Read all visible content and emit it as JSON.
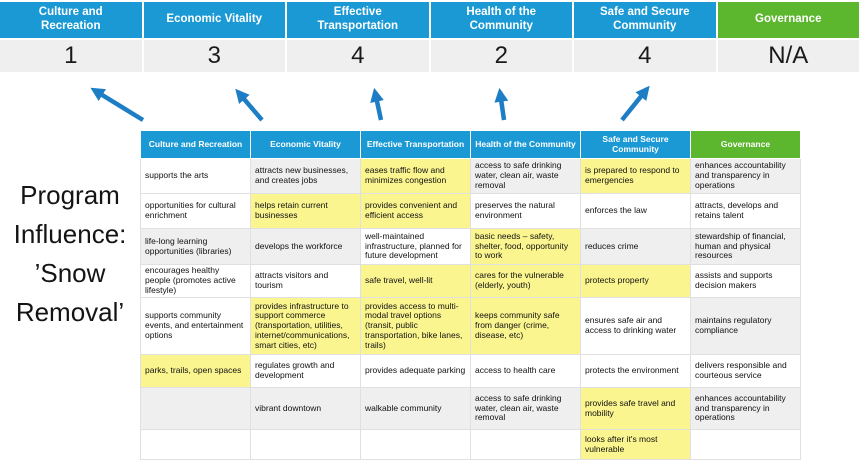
{
  "colors": {
    "header_blue": "#1b99d5",
    "governance_green": "#5cb62e",
    "highlight_yellow": "#fbf58f",
    "gray_cell": "#efefef",
    "white_cell": "#ffffff",
    "number_row_bg": "#efefef",
    "arrow_blue": "#1e7ec5"
  },
  "program_label": {
    "lines": [
      "Program",
      "Influence:",
      "’Snow",
      "Removal’"
    ]
  },
  "banner": {
    "columns": [
      {
        "label": "Culture and Recreation",
        "score": "1",
        "accent": "blue"
      },
      {
        "label": "Economic Vitality",
        "score": "3",
        "accent": "blue"
      },
      {
        "label": "Effective Transportation",
        "score": "4",
        "accent": "blue"
      },
      {
        "label": "Health of the Community",
        "score": "2",
        "accent": "blue"
      },
      {
        "label": "Safe and Secure Community",
        "score": "4",
        "accent": "blue"
      },
      {
        "label": "Governance",
        "score": "N/A",
        "accent": "green"
      }
    ]
  },
  "arrows": {
    "direction": "up",
    "count": 5
  },
  "matrix": {
    "headers": [
      {
        "label": "Culture and Recreation",
        "accent": "blue"
      },
      {
        "label": "Economic Vitality",
        "accent": "blue"
      },
      {
        "label": "Effective Transportation",
        "accent": "blue"
      },
      {
        "label": "Health of the Community",
        "accent": "blue"
      },
      {
        "label": "Safe and Secure Community",
        "accent": "blue"
      },
      {
        "label": "Governance",
        "accent": "green"
      }
    ],
    "rows": [
      [
        {
          "t": "supports the arts",
          "bg": "w"
        },
        {
          "t": "attracts new businesses, and creates jobs",
          "bg": "g"
        },
        {
          "t": "eases traffic flow and minimizes congestion",
          "bg": "y"
        },
        {
          "t": "access to safe drinking water, clean air, waste removal",
          "bg": "g"
        },
        {
          "t": "is prepared to respond to emergencies",
          "bg": "y"
        },
        {
          "t": "enhances accountability and transparency in operations",
          "bg": "g"
        }
      ],
      [
        {
          "t": "opportunities for cultural enrichment",
          "bg": "w"
        },
        {
          "t": "helps retain current businesses",
          "bg": "y"
        },
        {
          "t": "provides convenient and efficient access",
          "bg": "y"
        },
        {
          "t": "preserves the natural environment",
          "bg": "w"
        },
        {
          "t": "enforces the law",
          "bg": "w"
        },
        {
          "t": "attracts, develops and retains talent",
          "bg": "w"
        }
      ],
      [
        {
          "t": "life-long learning opportunities (libraries)",
          "bg": "g"
        },
        {
          "t": "develops the workforce",
          "bg": "g"
        },
        {
          "t": "well-maintained infrastructure, planned for future development",
          "bg": "w"
        },
        {
          "t": "basic needs – safety, shelter, food, opportunity to work",
          "bg": "y"
        },
        {
          "t": "reduces crime",
          "bg": "g"
        },
        {
          "t": "stewardship of financial, human and physical resources",
          "bg": "g"
        }
      ],
      [
        {
          "t": "encourages healthy people (promotes active lifestyle)",
          "bg": "w"
        },
        {
          "t": "attracts visitors and tourism",
          "bg": "w"
        },
        {
          "t": "safe travel, well-lit",
          "bg": "y"
        },
        {
          "t": "cares for the vulnerable (elderly, youth)",
          "bg": "y"
        },
        {
          "t": "protects property",
          "bg": "y"
        },
        {
          "t": "assists and supports decision makers",
          "bg": "w"
        }
      ],
      [
        {
          "t": "supports community events, and entertainment options",
          "bg": "w"
        },
        {
          "t": "provides infrastructure to support commerce (transportation, utilities, internet/communications, smart cities, etc)",
          "bg": "y"
        },
        {
          "t": "provides access to multi-modal travel options (transit, public transportation, bike lanes, trails)",
          "bg": "y"
        },
        {
          "t": "keeps community safe from danger (crime, disease, etc)",
          "bg": "y"
        },
        {
          "t": "ensures safe air and access to drinking water",
          "bg": "w"
        },
        {
          "t": "maintains regulatory compliance",
          "bg": "g"
        }
      ],
      [
        {
          "t": "parks, trails, open spaces",
          "bg": "y"
        },
        {
          "t": "regulates growth and development",
          "bg": "w"
        },
        {
          "t": "provides adequate parking",
          "bg": "w"
        },
        {
          "t": "access to health care",
          "bg": "w"
        },
        {
          "t": "protects the environment",
          "bg": "w"
        },
        {
          "t": "delivers responsible and courteous service",
          "bg": "w"
        }
      ],
      [
        {
          "t": "",
          "bg": "g"
        },
        {
          "t": "vibrant downtown",
          "bg": "g"
        },
        {
          "t": "walkable community",
          "bg": "g"
        },
        {
          "t": "access to safe drinking water, clean air, waste removal",
          "bg": "g"
        },
        {
          "t": "provides safe travel and mobility",
          "bg": "y"
        },
        {
          "t": "enhances accountability and transparency in operations",
          "bg": "g"
        }
      ],
      [
        {
          "t": "",
          "bg": "w"
        },
        {
          "t": "",
          "bg": "w"
        },
        {
          "t": "",
          "bg": "w"
        },
        {
          "t": "",
          "bg": "w"
        },
        {
          "t": "looks after it's most vulnerable",
          "bg": "y"
        },
        {
          "t": "",
          "bg": "w"
        }
      ]
    ]
  }
}
